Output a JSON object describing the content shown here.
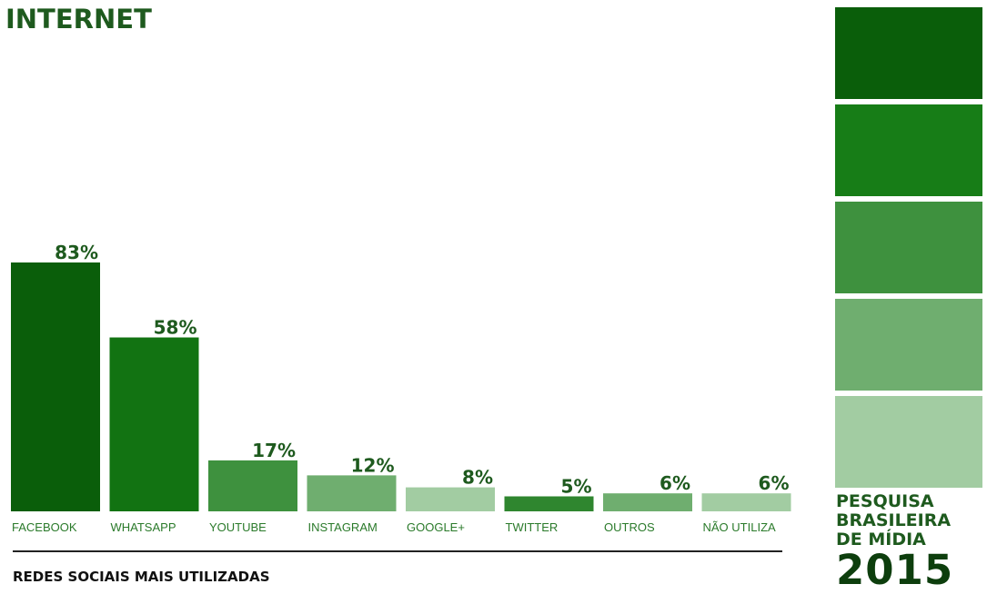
{
  "header": {
    "title": "INTERNET"
  },
  "caption": "REDES SOCIAIS MAIS UTILIZADAS",
  "brand": {
    "line1": "PESQUISA",
    "line2": "BRASILEIRA",
    "line3": "DE MÍDIA",
    "year": "2015"
  },
  "stripe_colors": [
    "#0a5e0a",
    "#177d17",
    "#3e913e",
    "#6fae6f",
    "#a2cca2"
  ],
  "chart_data": {
    "type": "bar",
    "title": "",
    "xlabel": "",
    "ylabel": "",
    "ylim": [
      0,
      100
    ],
    "grid": false,
    "categories": [
      "FACEBOOK",
      "WHATSAPP",
      "YOUTUBE",
      "INSTAGRAM",
      "GOOGLE+",
      "TWITTER",
      "OUTROS",
      "NÃO UTILIZA"
    ],
    "values": [
      83,
      58,
      17,
      12,
      8,
      5,
      6,
      6
    ],
    "value_labels": [
      "83%",
      "58%",
      "17%",
      "12%",
      "8%",
      "5%",
      "6%",
      "6%"
    ],
    "colors": [
      "#0a5e0a",
      "#127312",
      "#3e913e",
      "#6fae6f",
      "#a2cca2",
      "#2f862f",
      "#6fae6f",
      "#a2cca2"
    ]
  }
}
